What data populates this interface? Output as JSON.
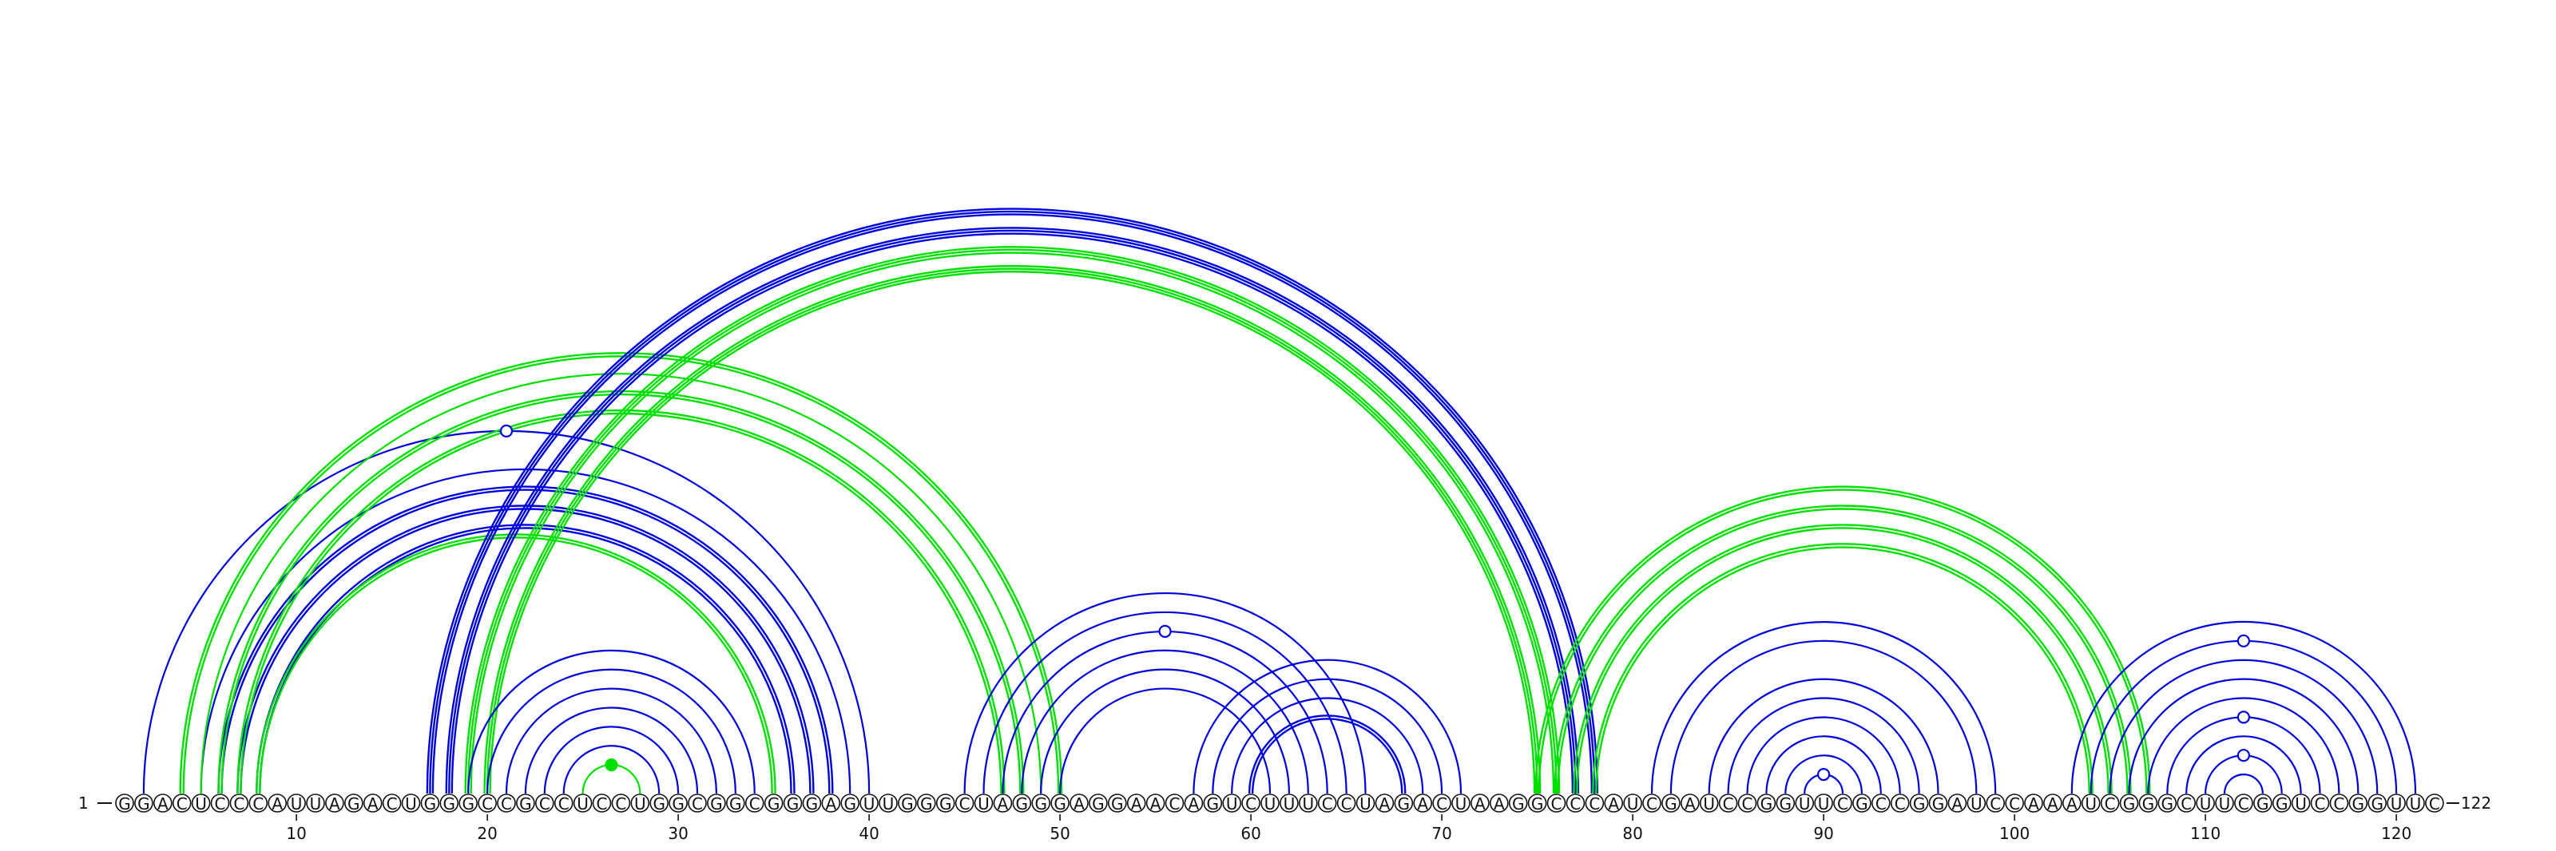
{
  "sequence": "GGACUCCCAUUAGACUGGGCCGCCUCCUGGCGGCGGGAGUUGGGCUAGGGAGGAACAGUCUUUCCUAGACUAAGGCCCAUCGAUCCGGUUCGCCGGAUCCAAAUCGGGCUUCGGUCCGGUUC",
  "start_label": "1",
  "end_label": "122",
  "tick_labels": [
    "10",
    "20",
    "30",
    "40",
    "50",
    "60",
    "70",
    "80",
    "90",
    "100",
    "110",
    "120"
  ],
  "tick_positions": [
    10,
    20,
    30,
    40,
    50,
    60,
    70,
    80,
    90,
    100,
    110,
    120
  ],
  "colors": {
    "blue": "#0000dd",
    "green": "#00e000",
    "backbone": "#111111"
  },
  "arcs": [
    {
      "i": 2,
      "j": 40,
      "color": "blue",
      "weight": 1
    },
    {
      "i": 5,
      "j": 39,
      "color": "blue",
      "weight": 1
    },
    {
      "i": 6,
      "j": 38,
      "color": "blue",
      "weight": 2
    },
    {
      "i": 7,
      "j": 37,
      "color": "blue",
      "weight": 2
    },
    {
      "i": 8,
      "j": 36,
      "color": "blue",
      "weight": 2
    },
    {
      "i": 4,
      "j": 50,
      "color": "green",
      "weight": 2
    },
    {
      "i": 5,
      "j": 49,
      "color": "green",
      "weight": 1
    },
    {
      "i": 6,
      "j": 48,
      "color": "green",
      "weight": 2
    },
    {
      "i": 7,
      "j": 47,
      "color": "green",
      "weight": 2
    },
    {
      "i": 8,
      "j": 35,
      "color": "green",
      "weight": 2
    },
    {
      "i": 17,
      "j": 78,
      "color": "blue",
      "weight": 3
    },
    {
      "i": 18,
      "j": 77,
      "color": "blue",
      "weight": 3
    },
    {
      "i": 19,
      "j": 76,
      "color": "green",
      "weight": 3
    },
    {
      "i": 20,
      "j": 75,
      "color": "green",
      "weight": 3
    },
    {
      "i": 19,
      "j": 34,
      "color": "blue",
      "weight": 1
    },
    {
      "i": 20,
      "j": 33,
      "color": "blue",
      "weight": 1
    },
    {
      "i": 21,
      "j": 32,
      "color": "blue",
      "weight": 1
    },
    {
      "i": 22,
      "j": 31,
      "color": "blue",
      "weight": 1
    },
    {
      "i": 23,
      "j": 30,
      "color": "blue",
      "weight": 1
    },
    {
      "i": 24,
      "j": 29,
      "color": "blue",
      "weight": 1
    },
    {
      "i": 25,
      "j": 28,
      "color": "green",
      "weight": 1
    },
    {
      "i": 45,
      "j": 66,
      "color": "blue",
      "weight": 1
    },
    {
      "i": 46,
      "j": 65,
      "color": "blue",
      "weight": 1
    },
    {
      "i": 47,
      "j": 64,
      "color": "blue",
      "weight": 1
    },
    {
      "i": 48,
      "j": 63,
      "color": "blue",
      "weight": 1
    },
    {
      "i": 49,
      "j": 62,
      "color": "blue",
      "weight": 1
    },
    {
      "i": 50,
      "j": 61,
      "color": "blue",
      "weight": 1
    },
    {
      "i": 57,
      "j": 71,
      "color": "blue",
      "weight": 1
    },
    {
      "i": 58,
      "j": 70,
      "color": "blue",
      "weight": 1
    },
    {
      "i": 59,
      "j": 69,
      "color": "blue",
      "weight": 1
    },
    {
      "i": 60,
      "j": 68,
      "color": "blue",
      "weight": 2
    },
    {
      "i": 75,
      "j": 107,
      "color": "green",
      "weight": 2
    },
    {
      "i": 76,
      "j": 106,
      "color": "green",
      "weight": 2
    },
    {
      "i": 77,
      "j": 105,
      "color": "green",
      "weight": 2
    },
    {
      "i": 78,
      "j": 104,
      "color": "green",
      "weight": 2
    },
    {
      "i": 81,
      "j": 99,
      "color": "blue",
      "weight": 1
    },
    {
      "i": 82,
      "j": 98,
      "color": "blue",
      "weight": 1
    },
    {
      "i": 84,
      "j": 96,
      "color": "blue",
      "weight": 1
    },
    {
      "i": 85,
      "j": 95,
      "color": "blue",
      "weight": 1
    },
    {
      "i": 86,
      "j": 94,
      "color": "blue",
      "weight": 1
    },
    {
      "i": 87,
      "j": 93,
      "color": "blue",
      "weight": 1
    },
    {
      "i": 88,
      "j": 92,
      "color": "blue",
      "weight": 1
    },
    {
      "i": 89,
      "j": 91,
      "color": "blue",
      "weight": 1
    },
    {
      "i": 103,
      "j": 121,
      "color": "blue",
      "weight": 1
    },
    {
      "i": 104,
      "j": 120,
      "color": "blue",
      "weight": 1
    },
    {
      "i": 105,
      "j": 119,
      "color": "blue",
      "weight": 1
    },
    {
      "i": 106,
      "j": 118,
      "color": "blue",
      "weight": 1
    },
    {
      "i": 107,
      "j": 117,
      "color": "blue",
      "weight": 1
    },
    {
      "i": 108,
      "j": 116,
      "color": "blue",
      "weight": 1
    },
    {
      "i": 109,
      "j": 115,
      "color": "blue",
      "weight": 1
    },
    {
      "i": 110,
      "j": 114,
      "color": "blue",
      "weight": 1
    },
    {
      "i": 111,
      "j": 113,
      "color": "blue",
      "weight": 1
    }
  ],
  "markers": [
    {
      "i": 2,
      "j": 40,
      "style": "open"
    },
    {
      "i": 25,
      "j": 28,
      "style": "filled"
    },
    {
      "i": 47,
      "j": 64,
      "style": "open"
    },
    {
      "i": 89,
      "j": 91,
      "style": "open"
    },
    {
      "i": 104,
      "j": 120,
      "style": "open"
    },
    {
      "i": 108,
      "j": 116,
      "style": "open"
    },
    {
      "i": 110,
      "j": 114,
      "style": "open"
    }
  ]
}
